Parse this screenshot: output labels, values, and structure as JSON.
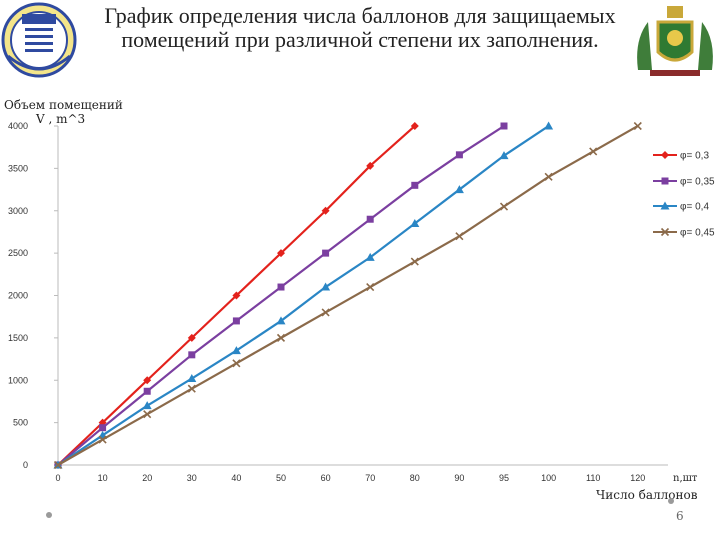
{
  "slide": {
    "title": "График определения числа баллонов для защищаемых помещений при различной степени их заполнения.",
    "page_number": "6"
  },
  "chart_data": {
    "type": "line",
    "ylabel_line1": "Объем помещений",
    "ylabel_line2": "V , m^3",
    "xlabel": "Число баллонов",
    "x_unit": "n,шт",
    "x_ticks": [
      "0",
      "10",
      "20",
      "30",
      "40",
      "50",
      "60",
      "70",
      "80",
      "90",
      "95",
      "100",
      "110",
      "120"
    ],
    "y_ticks": [
      0,
      500,
      1000,
      1500,
      2000,
      2500,
      3000,
      3500,
      4000
    ],
    "ylim": [
      0,
      4000
    ],
    "grid": false,
    "legend_position": "right",
    "series": [
      {
        "name": "φ= 0,3",
        "color": "#e3221c",
        "marker": "diamond",
        "points": [
          [
            0,
            0
          ],
          [
            10,
            500
          ],
          [
            20,
            1000
          ],
          [
            30,
            1500
          ],
          [
            40,
            2000
          ],
          [
            50,
            2500
          ],
          [
            60,
            3000
          ],
          [
            70,
            3530
          ],
          [
            80,
            4000
          ]
        ]
      },
      {
        "name": "φ= 0,35",
        "color": "#7b3fa0",
        "marker": "square",
        "points": [
          [
            0,
            0
          ],
          [
            10,
            440
          ],
          [
            20,
            870
          ],
          [
            30,
            1300
          ],
          [
            40,
            1700
          ],
          [
            50,
            2100
          ],
          [
            60,
            2500
          ],
          [
            70,
            2900
          ],
          [
            80,
            3300
          ],
          [
            90,
            3660
          ],
          [
            95,
            4000
          ]
        ]
      },
      {
        "name": "φ= 0,4",
        "color": "#2a86c5",
        "marker": "triangle",
        "points": [
          [
            0,
            0
          ],
          [
            10,
            350
          ],
          [
            20,
            700
          ],
          [
            30,
            1020
          ],
          [
            40,
            1350
          ],
          [
            50,
            1700
          ],
          [
            60,
            2100
          ],
          [
            70,
            2450
          ],
          [
            80,
            2850
          ],
          [
            90,
            3250
          ],
          [
            95,
            3650
          ],
          [
            100,
            4000
          ]
        ]
      },
      {
        "name": "φ= 0,45",
        "color": "#8b6a4a",
        "marker": "cross",
        "points": [
          [
            0,
            0
          ],
          [
            10,
            300
          ],
          [
            20,
            600
          ],
          [
            30,
            900
          ],
          [
            40,
            1200
          ],
          [
            50,
            1500
          ],
          [
            60,
            1800
          ],
          [
            70,
            2100
          ],
          [
            80,
            2400
          ],
          [
            90,
            2700
          ],
          [
            95,
            3050
          ],
          [
            100,
            3400
          ],
          [
            110,
            3700
          ],
          [
            120,
            4000
          ]
        ]
      }
    ]
  }
}
